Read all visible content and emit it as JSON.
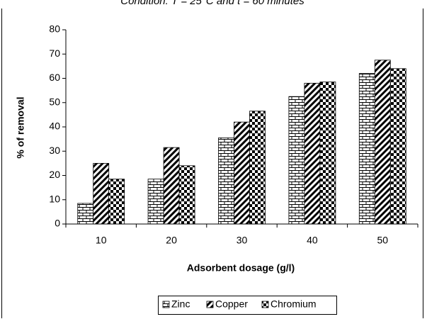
{
  "chart_data": {
    "type": "bar",
    "title": "Condition: T = 25°C and t = 60 minutes",
    "xlabel": "Adsorbent dosage (g/l)",
    "ylabel": "% of removal",
    "categories": [
      "10",
      "20",
      "30",
      "40",
      "50"
    ],
    "series": [
      {
        "name": "Zinc",
        "pattern": "brick",
        "values": [
          8.5,
          18.5,
          35.5,
          52.5,
          62
        ]
      },
      {
        "name": "Copper",
        "pattern": "diagonal",
        "values": [
          25,
          31.5,
          42,
          58,
          67.5
        ]
      },
      {
        "name": "Chromium",
        "pattern": "checker",
        "values": [
          18.5,
          24,
          46.5,
          58.5,
          64
        ]
      }
    ],
    "ylim": [
      0,
      80
    ],
    "yticks": [
      0,
      10,
      20,
      30,
      40,
      50,
      60,
      70,
      80
    ],
    "legend": "bottom"
  }
}
